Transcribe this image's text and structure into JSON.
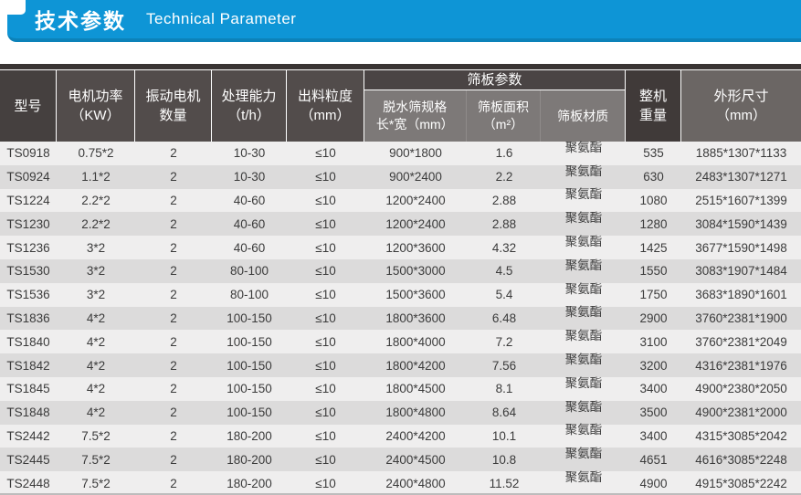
{
  "title": {
    "zh": "技术参数",
    "en": "Technical Parameter"
  },
  "colors": {
    "accent_blue": "#0e95d6",
    "accent_blue_dark": "#0c82b9",
    "header_dark": "#45403f",
    "header_mid": "#524c4b",
    "header_group": "#4a4444",
    "subheader_gray": "#7d7978",
    "row_light": "#efeeee",
    "row_gray": "#dcdbdb",
    "text_dark": "#3b3b3b"
  },
  "table": {
    "columns": [
      {
        "label": "型号",
        "label2": ""
      },
      {
        "label": "电机功率",
        "label2": "（KW）"
      },
      {
        "label": "振动电机",
        "label2": "数量"
      },
      {
        "label": "处理能力",
        "label2": "（t/h）"
      },
      {
        "label": "出料粒度",
        "label2": "（mm）"
      },
      {
        "group": "筛板参数",
        "children": [
          {
            "label": "脱水筛规格",
            "label2": "长*宽（mm）"
          },
          {
            "label": "筛板面积",
            "label2": "（m²）"
          },
          {
            "label": "筛板材质",
            "label2": ""
          }
        ]
      },
      {
        "label": "整机",
        "label2": "重量"
      },
      {
        "label": "外形尺寸",
        "label2": "（mm）"
      }
    ],
    "rows": [
      [
        "TS0918",
        "0.75*2",
        "2",
        "10-30",
        "≤10",
        "900*1800",
        "1.6",
        "聚氨酯",
        "535",
        "1885*1307*1133"
      ],
      [
        "TS0924",
        "1.1*2",
        "2",
        "10-30",
        "≤10",
        "900*2400",
        "2.2",
        "聚氨酯",
        "630",
        "2483*1307*1271"
      ],
      [
        "TS1224",
        "2.2*2",
        "2",
        "40-60",
        "≤10",
        "1200*2400",
        "2.88",
        "聚氨酯",
        "1080",
        "2515*1607*1399"
      ],
      [
        "TS1230",
        "2.2*2",
        "2",
        "40-60",
        "≤10",
        "1200*2400",
        "2.88",
        "聚氨酯",
        "1280",
        "3084*1590*1439"
      ],
      [
        "TS1236",
        "3*2",
        "2",
        "40-60",
        "≤10",
        "1200*3600",
        "4.32",
        "聚氨酯",
        "1425",
        "3677*1590*1498"
      ],
      [
        "TS1530",
        "3*2",
        "2",
        "80-100",
        "≤10",
        "1500*3000",
        "4.5",
        "聚氨酯",
        "1550",
        "3083*1907*1484"
      ],
      [
        "TS1536",
        "3*2",
        "2",
        "80-100",
        "≤10",
        "1500*3600",
        "5.4",
        "聚氨酯",
        "1750",
        "3683*1890*1601"
      ],
      [
        "TS1836",
        "4*2",
        "2",
        "100-150",
        "≤10",
        "1800*3600",
        "6.48",
        "聚氨酯",
        "2900",
        "3760*2381*1900"
      ],
      [
        "TS1840",
        "4*2",
        "2",
        "100-150",
        "≤10",
        "1800*4000",
        "7.2",
        "聚氨酯",
        "3100",
        "3760*2381*2049"
      ],
      [
        "TS1842",
        "4*2",
        "2",
        "100-150",
        "≤10",
        "1800*4200",
        "7.56",
        "聚氨酯",
        "3200",
        "4316*2381*1976"
      ],
      [
        "TS1845",
        "4*2",
        "2",
        "100-150",
        "≤10",
        "1800*4500",
        "8.1",
        "聚氨酯",
        "3400",
        "4900*2380*2050"
      ],
      [
        "TS1848",
        "4*2",
        "2",
        "100-150",
        "≤10",
        "1800*4800",
        "8.64",
        "聚氨酯",
        "3500",
        "4900*2381*2000"
      ],
      [
        "TS2442",
        "7.5*2",
        "2",
        "180-200",
        "≤10",
        "2400*4200",
        "10.1",
        "聚氨酯",
        "3400",
        "4315*3085*2042"
      ],
      [
        "TS2445",
        "7.5*2",
        "2",
        "180-200",
        "≤10",
        "2400*4500",
        "10.8",
        "聚氨酯",
        "4651",
        "4616*3085*2248"
      ],
      [
        "TS2448",
        "7.5*2",
        "2",
        "180-200",
        "≤10",
        "2400*4800",
        "11.52",
        "聚氨酯",
        "4900",
        "4915*3085*2242"
      ]
    ]
  }
}
